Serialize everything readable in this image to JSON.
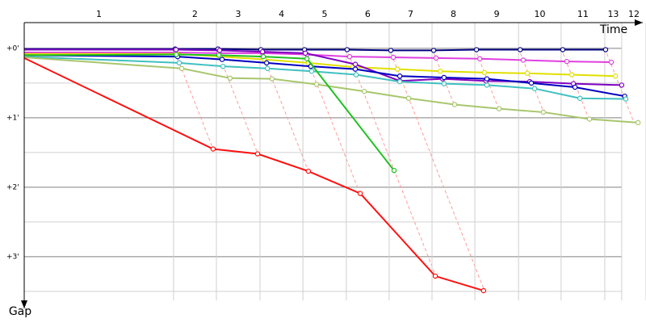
{
  "chart_data": {
    "type": "line",
    "x_label": "Time",
    "y_label": "Gap",
    "xlim": [
      0,
      22.78
    ],
    "ylim": [
      -0.37,
      3.63
    ],
    "yticks": [
      {
        "value": 0,
        "label": "+0'"
      },
      {
        "value": 1,
        "label": "+1'"
      },
      {
        "value": 2,
        "label": "+2'"
      },
      {
        "value": 3,
        "label": "+3'"
      }
    ],
    "minor_yticks": [
      0.5,
      1.5,
      2.5,
      3.5
    ],
    "laps": [
      {
        "label": "1",
        "end": 5.47
      },
      {
        "label": "2",
        "end": 7.04
      },
      {
        "label": "3",
        "end": 8.64
      },
      {
        "label": "4",
        "end": 10.21
      },
      {
        "label": "5",
        "end": 11.8
      },
      {
        "label": "6",
        "end": 13.37
      },
      {
        "label": "7",
        "end": 14.94
      },
      {
        "label": "8",
        "end": 16.51
      },
      {
        "label": "9",
        "end": 18.11
      },
      {
        "label": "10",
        "end": 19.67
      },
      {
        "label": "11",
        "end": 21.27
      },
      {
        "label": "13",
        "end": 21.89
      },
      {
        "label": "12",
        "end": 22.78
      }
    ],
    "series": [
      {
        "color": "#000080",
        "x": [
          0,
          5.53,
          7.1,
          8.67,
          10.27,
          11.83,
          13.43,
          15.0,
          16.57,
          18.17,
          19.73,
          21.3
        ],
        "values": [
          0.01,
          0.01,
          0.01,
          0.02,
          0.02,
          0.02,
          0.03,
          0.03,
          0.02,
          0.02,
          0.02,
          0.02
        ]
      },
      {
        "color": "#e040e0",
        "x": [
          0,
          5.56,
          7.13,
          8.73,
          10.36,
          11.92,
          13.52,
          15.09,
          16.69,
          18.28,
          19.88,
          21.51
        ],
        "values": [
          0.06,
          0.06,
          0.07,
          0.07,
          0.09,
          0.12,
          0.13,
          0.14,
          0.15,
          0.17,
          0.19,
          0.2
        ]
      },
      {
        "color": "#e0e000",
        "x": [
          0,
          5.59,
          7.19,
          8.79,
          10.41,
          12.04,
          13.67,
          15.24,
          16.86,
          18.43,
          20.06,
          21.66
        ],
        "values": [
          0.08,
          0.08,
          0.12,
          0.16,
          0.21,
          0.27,
          0.3,
          0.33,
          0.35,
          0.36,
          0.38,
          0.4
        ]
      },
      {
        "color": "#8000c0",
        "x": [
          0,
          5.56,
          7.16,
          8.73,
          10.3,
          12.13,
          13.76,
          15.33,
          16.92,
          18.52,
          20.12,
          21.89
        ],
        "values": [
          0.02,
          0.02,
          0.03,
          0.05,
          0.07,
          0.23,
          0.47,
          0.44,
          0.47,
          0.48,
          0.51,
          0.53
        ]
      },
      {
        "color": "#0000c0",
        "x": [
          0,
          5.62,
          7.25,
          8.88,
          10.5,
          12.13,
          13.76,
          15.38,
          16.95,
          18.58,
          20.18,
          22.0
        ],
        "values": [
          0.1,
          0.12,
          0.16,
          0.21,
          0.26,
          0.3,
          0.4,
          0.42,
          0.44,
          0.5,
          0.56,
          0.69
        ]
      },
      {
        "color": "#40c0c0",
        "x": [
          0,
          5.68,
          7.28,
          8.91,
          10.53,
          12.16,
          13.76,
          15.38,
          16.95,
          18.7,
          20.36,
          22.04
        ],
        "values": [
          0.12,
          0.21,
          0.26,
          0.29,
          0.33,
          0.38,
          0.48,
          0.51,
          0.53,
          0.58,
          0.72,
          0.73
        ]
      },
      {
        "color": "#a8c66c",
        "x": [
          0,
          5.77,
          7.54,
          9.08,
          10.71,
          12.46,
          14.08,
          15.77,
          17.4,
          19.02,
          20.71,
          22.49
        ],
        "values": [
          0.13,
          0.29,
          0.43,
          0.44,
          0.52,
          0.62,
          0.72,
          0.81,
          0.87,
          0.92,
          1.02,
          1.07
        ]
      },
      {
        "color": "#20c020",
        "x": [
          0,
          5.57,
          7.13,
          8.76,
          10.36,
          13.55
        ],
        "values": [
          0.1,
          0.09,
          0.1,
          0.12,
          0.15,
          1.76
        ]
      },
      {
        "color": "#ff1010",
        "x": [
          0,
          6.92,
          8.55,
          10.41,
          12.31,
          15.06,
          16.83
        ],
        "values": [
          0.14,
          1.45,
          1.52,
          1.77,
          2.09,
          3.28,
          3.49
        ]
      }
    ]
  }
}
